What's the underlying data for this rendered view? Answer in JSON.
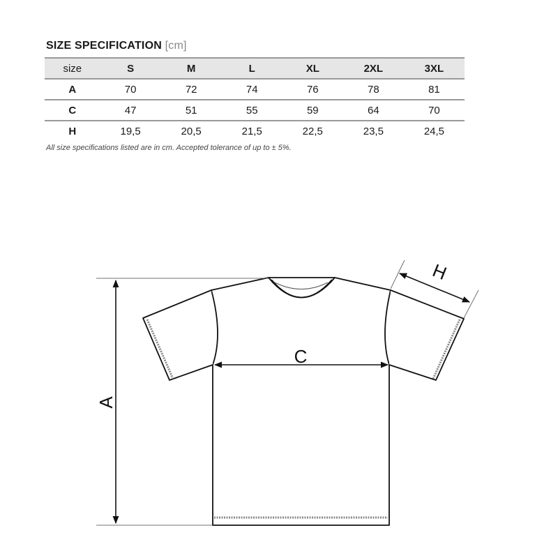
{
  "title": "SIZE SPECIFICATION",
  "unit": "[cm]",
  "table": {
    "headers": [
      "size",
      "S",
      "M",
      "L",
      "XL",
      "2XL",
      "3XL"
    ],
    "rows": [
      {
        "label": "A",
        "values": [
          "70",
          "72",
          "74",
          "76",
          "78",
          "81"
        ]
      },
      {
        "label": "C",
        "values": [
          "47",
          "51",
          "55",
          "59",
          "64",
          "70"
        ]
      },
      {
        "label": "H",
        "values": [
          "19,5",
          "20,5",
          "21,5",
          "22,5",
          "23,5",
          "24,5"
        ]
      }
    ]
  },
  "note": "All size specifications listed are in cm. Accepted tolerance of up to ± 5%.",
  "diagram": {
    "label_a": "A",
    "label_c": "C",
    "label_h": "H"
  }
}
